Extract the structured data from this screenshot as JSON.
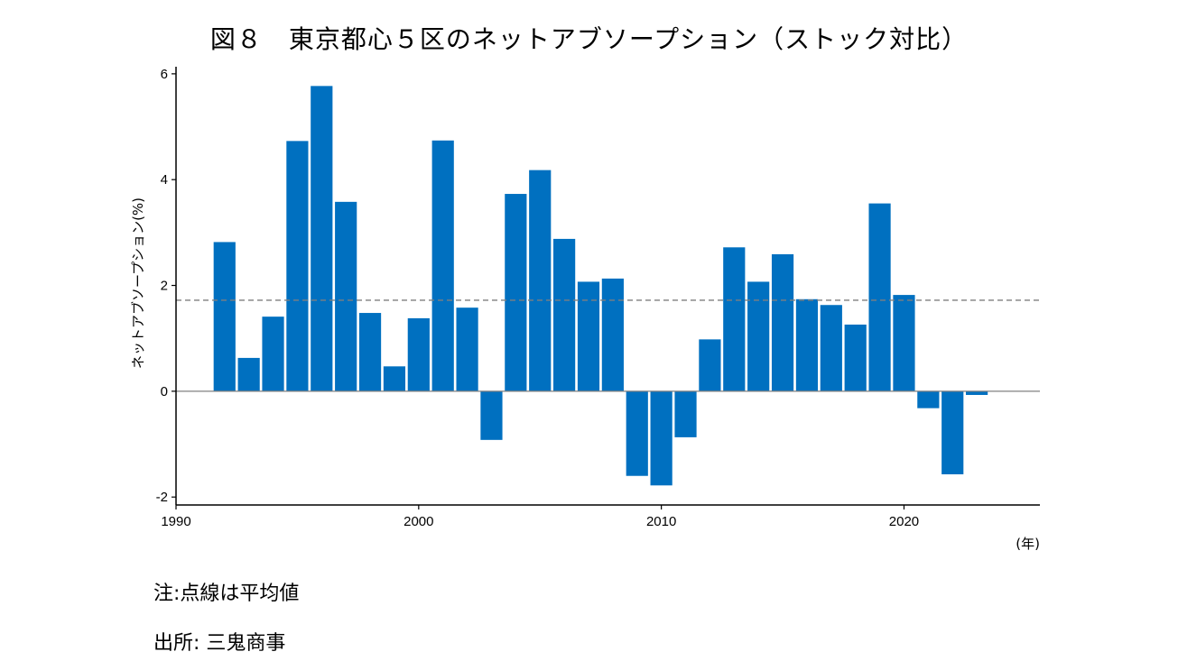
{
  "chart_data": {
    "type": "bar",
    "title": "図８　東京都心５区のネットアブソープション（ストック対比）",
    "xlabel": "(年)",
    "ylabel": "ネットアブソープション(%)",
    "x": [
      1992,
      1993,
      1994,
      1995,
      1996,
      1997,
      1998,
      1999,
      2000,
      2001,
      2002,
      2003,
      2004,
      2005,
      2006,
      2007,
      2008,
      2009,
      2010,
      2011,
      2012,
      2013,
      2014,
      2015,
      2016,
      2017,
      2018,
      2019,
      2020,
      2021,
      2022,
      2023
    ],
    "values": [
      2.82,
      0.63,
      1.41,
      4.73,
      5.77,
      3.58,
      1.48,
      0.47,
      1.38,
      4.74,
      1.58,
      -0.92,
      3.73,
      4.18,
      2.88,
      2.07,
      2.13,
      -1.6,
      -1.78,
      -0.87,
      0.98,
      2.72,
      2.07,
      2.59,
      1.74,
      1.63,
      1.26,
      3.55,
      1.82,
      -0.32,
      -1.57,
      -0.07
    ],
    "mean_line": 1.72,
    "xlim": [
      1990,
      2025.6
    ],
    "ylim": [
      -2.15,
      6.1
    ],
    "xticks": [
      "1990",
      "2000",
      "2010",
      "2020"
    ],
    "yticks": [
      "-2",
      "0",
      "2",
      "4",
      "6"
    ],
    "bar_color": "#0070c0",
    "mean_line_color": "#7f7f7f",
    "zero_line_color": "#808080"
  },
  "notes": {
    "note": "注:点線は平均値",
    "source": "出所:  三鬼商事"
  }
}
